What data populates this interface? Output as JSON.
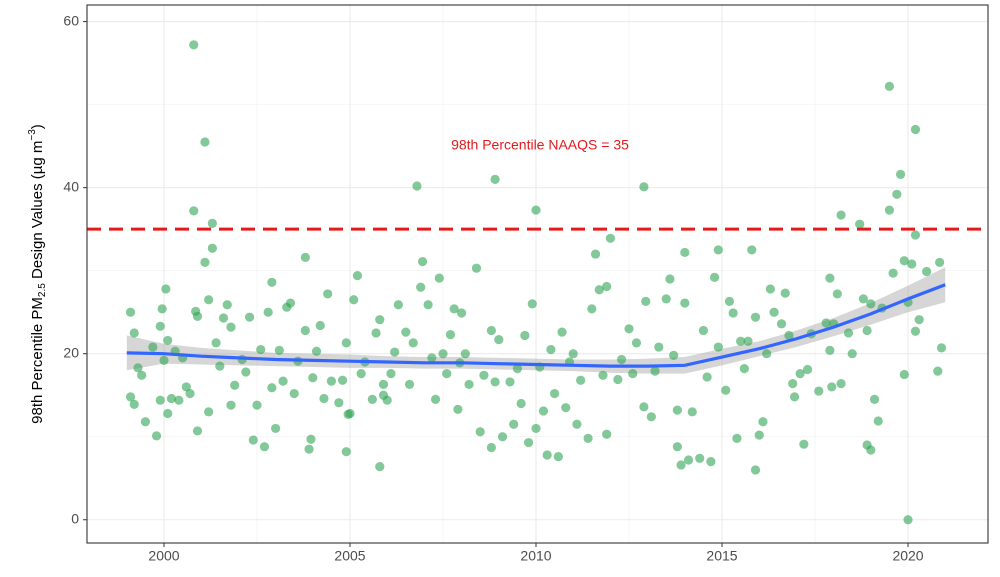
{
  "chart_data": {
    "type": "scatter",
    "y_label": [
      "98th Percentile PM",
      "2.5",
      " Design Values (µg m",
      "−3",
      ")"
    ],
    "annotation": "98th Percentile NAAQS = 35",
    "hline": 35,
    "hline_color": "#e41a1c",
    "point_color": "#31a354",
    "smooth_color": "#3366ff",
    "band_color": "#999999",
    "xlim": [
      1997.93,
      2022.15
    ],
    "ylim": [
      -2.8,
      62
    ],
    "xticks": [
      2000,
      2005,
      2010,
      2015,
      2020
    ],
    "yticks": [
      0,
      20,
      40,
      60
    ],
    "minor_xticks": [
      1997.5,
      2002.5,
      2007.5,
      2012.5,
      2017.5
    ],
    "minor_yticks": [
      10,
      30,
      50
    ],
    "grid": true,
    "x": [
      1999.1,
      1999.1,
      1999.2,
      1999.2,
      1999.3,
      1999.4,
      1999.5,
      1999.7,
      1999.8,
      1999.9,
      1999.9,
      1999.95,
      2000.0,
      2000.05,
      2000.1,
      2000.1,
      2000.2,
      2000.3,
      2000.4,
      2000.5,
      2000.6,
      2000.7,
      2000.8,
      2000.8,
      2000.85,
      2000.9,
      2000.9,
      2001.1,
      2001.1,
      2001.2,
      2001.2,
      2001.3,
      2001.3,
      2001.4,
      2001.5,
      2001.6,
      2001.7,
      2001.8,
      2001.9,
      2001.8,
      2002.1,
      2002.2,
      2002.3,
      2002.4,
      2002.5,
      2002.6,
      2002.7,
      2002.8,
      2002.9,
      2002.9,
      2003.0,
      2003.1,
      2003.2,
      2003.3,
      2003.4,
      2003.5,
      2003.6,
      2003.8,
      2003.8,
      2003.9,
      2003.95,
      2004.0,
      2004.1,
      2004.2,
      2004.3,
      2004.4,
      2004.5,
      2004.7,
      2004.8,
      2004.9,
      2004.9,
      2004.95,
      2005.0,
      2005.1,
      2005.2,
      2005.3,
      2005.4,
      2005.6,
      2005.7,
      2005.8,
      2005.8,
      2005.9,
      2005.9,
      2006.0,
      2006.1,
      2006.2,
      2006.3,
      2006.5,
      2006.6,
      2006.7,
      2006.8,
      2006.9,
      2006.95,
      2007.1,
      2007.2,
      2007.3,
      2007.4,
      2007.5,
      2007.6,
      2007.7,
      2007.8,
      2007.9,
      2007.95,
      2008.0,
      2008.1,
      2008.2,
      2008.4,
      2008.5,
      2008.6,
      2008.8,
      2008.8,
      2008.9,
      2008.9,
      2009.0,
      2009.1,
      2009.3,
      2009.4,
      2009.5,
      2009.6,
      2009.7,
      2009.8,
      2009.9,
      2010.0,
      2010.0,
      2010.1,
      2010.2,
      2010.3,
      2010.4,
      2010.5,
      2010.6,
      2010.7,
      2010.8,
      2010.9,
      2011.0,
      2011.1,
      2011.2,
      2011.4,
      2011.5,
      2011.6,
      2011.7,
      2011.8,
      2011.9,
      2011.9,
      2012.0,
      2012.2,
      2012.3,
      2012.5,
      2012.6,
      2012.7,
      2012.9,
      2012.9,
      2012.95,
      2013.1,
      2013.2,
      2013.3,
      2013.5,
      2013.6,
      2013.7,
      2013.8,
      2013.8,
      2013.9,
      2014.0,
      2014.0,
      2014.1,
      2014.2,
      2014.4,
      2014.5,
      2014.6,
      2014.7,
      2014.8,
      2014.9,
      2014.9,
      2015.1,
      2015.2,
      2015.3,
      2015.4,
      2015.5,
      2015.6,
      2015.7,
      2015.8,
      2015.9,
      2015.9,
      2016.0,
      2016.1,
      2016.2,
      2016.3,
      2016.4,
      2016.6,
      2016.7,
      2016.8,
      2016.9,
      2016.95,
      2017.1,
      2017.2,
      2017.3,
      2017.4,
      2017.6,
      2017.8,
      2017.9,
      2017.9,
      2017.95,
      2018.0,
      2018.1,
      2018.2,
      2018.2,
      2018.4,
      2018.5,
      2018.7,
      2018.8,
      2018.9,
      2018.9,
      2019.0,
      2019.0,
      2019.1,
      2019.2,
      2019.3,
      2019.5,
      2019.5,
      2019.6,
      2019.7,
      2019.8,
      2019.9,
      2019.9,
      2020.0,
      2020.0,
      2020.1,
      2020.2,
      2020.2,
      2020.3,
      2020.2,
      2020.5,
      2020.8,
      2020.85,
      2020.9
    ],
    "values": [
      25,
      14.8,
      22.5,
      13.9,
      18.3,
      17.4,
      11.8,
      20.8,
      10.1,
      14.4,
      23.3,
      25.4,
      19.2,
      27.8,
      21.6,
      12.8,
      14.6,
      20.3,
      14.4,
      19.5,
      16,
      15.2,
      57.2,
      37.2,
      25.1,
      10.7,
      24.5,
      45.5,
      31,
      26.5,
      13,
      35.7,
      32.7,
      21.3,
      18.5,
      24.3,
      25.9,
      13.8,
      16.2,
      23.2,
      19.3,
      17.8,
      24.4,
      9.6,
      13.8,
      20.5,
      8.8,
      25,
      28.6,
      15.9,
      11,
      20.4,
      16.7,
      25.6,
      26.1,
      15.2,
      19.1,
      22.8,
      31.6,
      8.5,
      9.7,
      17.1,
      20.3,
      23.4,
      14.6,
      27.2,
      16.7,
      14.1,
      16.8,
      21.3,
      8.2,
      12.7,
      12.8,
      26.5,
      29.4,
      17.6,
      19,
      14.5,
      22.5,
      6.4,
      24.1,
      16.3,
      15,
      14.4,
      17.6,
      20.2,
      25.9,
      22.6,
      16.3,
      21.3,
      40.2,
      28,
      31.1,
      25.9,
      19.5,
      14.5,
      29.1,
      20,
      17.6,
      22.3,
      25.4,
      13.3,
      18.9,
      24.9,
      20,
      16.3,
      30.3,
      10.6,
      17.4,
      22.8,
      8.7,
      41,
      16.6,
      21.7,
      10,
      16.6,
      11.5,
      18.2,
      14,
      22.2,
      9.3,
      26,
      37.3,
      11,
      18.4,
      13.1,
      7.8,
      20.5,
      15.2,
      7.6,
      22.6,
      13.5,
      19,
      20,
      11.5,
      16.8,
      9.8,
      25.4,
      32,
      27.7,
      17.4,
      10.3,
      28.1,
      33.9,
      16.9,
      19.3,
      23,
      17.6,
      21.3,
      13.6,
      40.1,
      26.3,
      12.4,
      17.9,
      20.8,
      26.6,
      29,
      19.8,
      8.8,
      13.2,
      6.6,
      32.2,
      26.1,
      7.2,
      13,
      7.4,
      22.8,
      17.2,
      7,
      29.2,
      32.5,
      20.8,
      15.6,
      26.3,
      24.9,
      9.8,
      21.5,
      18.2,
      21.5,
      32.5,
      6,
      24.4,
      10.2,
      11.8,
      20,
      27.8,
      25,
      23.6,
      27.3,
      22.2,
      16.4,
      14.8,
      17.6,
      9.1,
      18.1,
      22.4,
      15.5,
      23.7,
      29.1,
      20.4,
      16,
      23.6,
      27.2,
      16.4,
      36.7,
      22.5,
      20,
      35.6,
      26.6,
      9,
      22.8,
      8.4,
      26,
      14.5,
      11.9,
      25.5,
      52.2,
      37.3,
      29.7,
      39.2,
      41.6,
      17.5,
      31.2,
      0,
      26.2,
      30.8,
      47,
      34.3,
      24.1,
      22.7,
      29.9,
      17.9,
      31,
      20.7
    ],
    "smooth": {
      "x": [
        1999,
        2000,
        2001,
        2002,
        2003,
        2004,
        2005,
        2006,
        2007,
        2008,
        2009,
        2010,
        2011,
        2012,
        2013,
        2014,
        2015,
        2016,
        2017,
        2018,
        2019,
        2020,
        2021
      ],
      "values": [
        20.1,
        20.0,
        19.7,
        19.5,
        19.3,
        19.2,
        19.1,
        19.0,
        18.9,
        18.9,
        18.8,
        18.7,
        18.6,
        18.5,
        18.5,
        18.6,
        19.6,
        20.6,
        21.8,
        23.2,
        24.8,
        26.6,
        28.3
      ],
      "lower": [
        18.0,
        18.8,
        18.7,
        18.6,
        18.5,
        18.4,
        18.3,
        18.3,
        18.2,
        18.2,
        18.1,
        18.0,
        17.9,
        17.7,
        17.6,
        17.6,
        18.6,
        19.7,
        20.8,
        22.1,
        23.5,
        25.0,
        26.2
      ],
      "upper": [
        22.2,
        21.2,
        20.7,
        20.4,
        20.1,
        20.0,
        19.9,
        19.7,
        19.6,
        19.6,
        19.5,
        19.4,
        19.3,
        19.3,
        19.4,
        19.6,
        20.6,
        21.5,
        22.8,
        24.3,
        26.1,
        28.2,
        30.4
      ]
    }
  }
}
